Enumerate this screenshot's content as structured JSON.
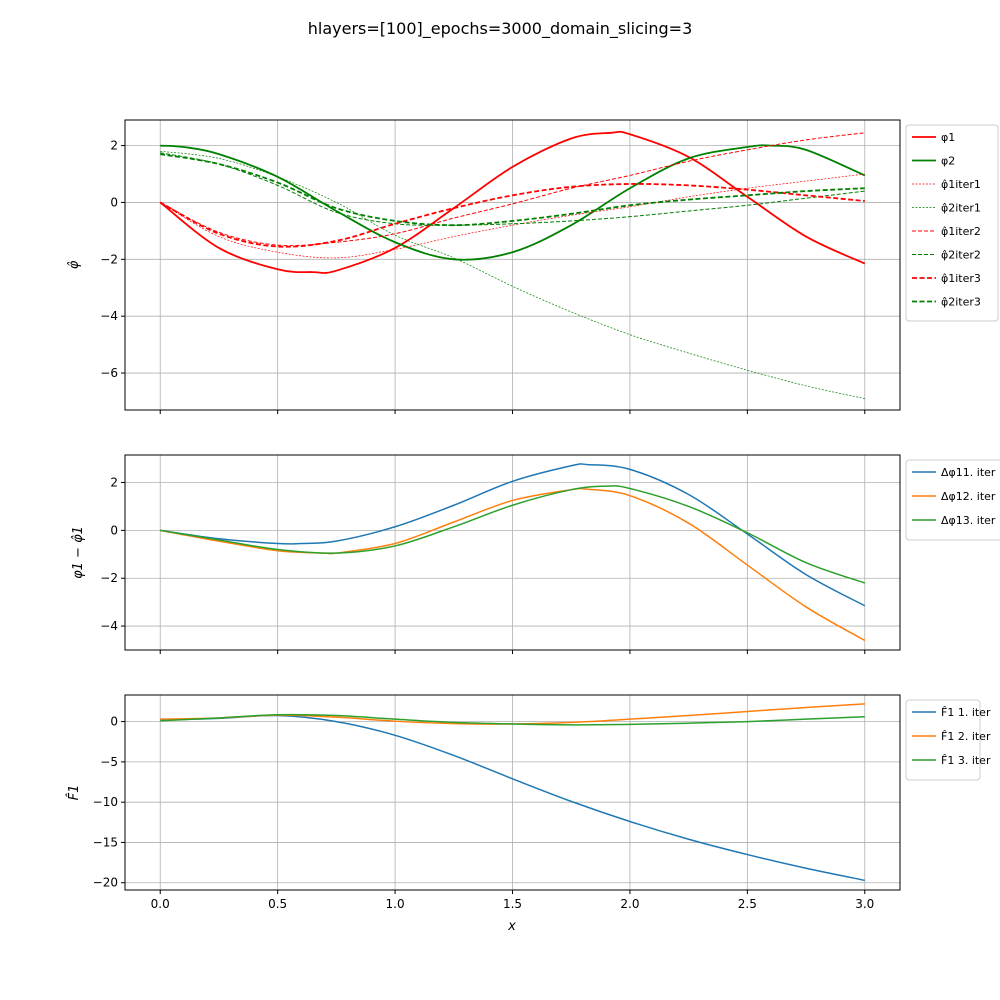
{
  "title": "hlayers=[100]_epochs=3000_domain_slicing=3",
  "xlabel": "x",
  "x_ticks": [
    "0.0",
    "0.5",
    "1.0",
    "1.5",
    "2.0",
    "2.5",
    "3.0"
  ],
  "chart_data": [
    {
      "type": "line",
      "ylabel": "φ̂",
      "xlim": [
        -0.15,
        3.15
      ],
      "ylim": [
        -7.3,
        2.9
      ],
      "y_ticks": [
        2,
        0,
        -2,
        -4,
        -6
      ],
      "y_tick_labels": [
        "2",
        "0",
        "−2",
        "−4",
        "−6"
      ],
      "grid": true,
      "legend_position": "outside-right",
      "series": [
        {
          "name": "φ1",
          "color": "#ff0000",
          "dash": "solid",
          "width": 1.8,
          "x": [
            0,
            0.25,
            0.5,
            0.65,
            0.75,
            1.0,
            1.25,
            1.5,
            1.75,
            1.92,
            2.0,
            2.25,
            2.5,
            2.75,
            3.0
          ],
          "y": [
            0,
            -1.6,
            -2.35,
            -2.45,
            -2.4,
            -1.6,
            -0.2,
            1.25,
            2.25,
            2.45,
            2.4,
            1.6,
            0.2,
            -1.2,
            -2.15
          ]
        },
        {
          "name": "φ2",
          "color": "#008000",
          "dash": "solid",
          "width": 1.8,
          "x": [
            0,
            0.1,
            0.25,
            0.5,
            0.75,
            1.0,
            1.25,
            1.5,
            1.75,
            2.0,
            2.25,
            2.5,
            2.6,
            2.75,
            3.0
          ],
          "y": [
            2.0,
            1.95,
            1.7,
            0.9,
            -0.3,
            -1.4,
            -2.0,
            -1.75,
            -0.8,
            0.5,
            1.55,
            1.95,
            2.0,
            1.85,
            0.95
          ]
        },
        {
          "name": "φ̂1iter1",
          "color": "#ff0000",
          "dash": "2,1.5",
          "width": 0.7,
          "x": [
            0,
            0.25,
            0.5,
            0.75,
            1.0,
            1.25,
            1.5,
            1.75,
            2.0,
            2.25,
            2.5,
            2.75,
            3.0
          ],
          "y": [
            0,
            -1.2,
            -1.75,
            -1.95,
            -1.65,
            -1.2,
            -0.8,
            -0.45,
            -0.15,
            0.2,
            0.5,
            0.75,
            1.0
          ]
        },
        {
          "name": "φ̂2iter1",
          "color": "#008000",
          "dash": "2,1.5",
          "width": 0.7,
          "x": [
            0,
            0.25,
            0.5,
            0.75,
            1.0,
            1.25,
            1.5,
            1.75,
            2.0,
            2.25,
            2.5,
            2.75,
            3.0
          ],
          "y": [
            1.8,
            1.55,
            0.9,
            0.0,
            -1.15,
            -1.95,
            -2.95,
            -3.85,
            -4.65,
            -5.3,
            -5.9,
            -6.45,
            -6.9
          ]
        },
        {
          "name": "φ̂1iter2",
          "color": "#ff0000",
          "dash": "4,2",
          "width": 1.0,
          "x": [
            0,
            0.25,
            0.5,
            0.75,
            1.0,
            1.25,
            1.5,
            1.75,
            2.0,
            2.25,
            2.5,
            2.75,
            3.0
          ],
          "y": [
            0,
            -1.05,
            -1.5,
            -1.4,
            -1.1,
            -0.55,
            -0.05,
            0.5,
            0.95,
            1.45,
            1.85,
            2.2,
            2.45
          ]
        },
        {
          "name": "φ̂2iter2",
          "color": "#008000",
          "dash": "4,2",
          "width": 1.0,
          "x": [
            0,
            0.25,
            0.5,
            0.75,
            1.0,
            1.25,
            1.5,
            1.75,
            2.0,
            2.25,
            2.5,
            2.75,
            3.0
          ],
          "y": [
            1.75,
            1.35,
            0.6,
            -0.35,
            -0.75,
            -0.8,
            -0.75,
            -0.65,
            -0.5,
            -0.3,
            -0.1,
            0.15,
            0.4
          ]
        },
        {
          "name": "φ̂1iter3",
          "color": "#ff0000",
          "dash": "5,2.5",
          "width": 1.8,
          "x": [
            0,
            0.25,
            0.5,
            0.75,
            1.0,
            1.25,
            1.5,
            1.75,
            2.0,
            2.25,
            2.5,
            2.75,
            3.0
          ],
          "y": [
            0,
            -1.1,
            -1.55,
            -1.35,
            -0.75,
            -0.2,
            0.25,
            0.55,
            0.65,
            0.6,
            0.45,
            0.25,
            0.05
          ]
        },
        {
          "name": "φ̂2iter3",
          "color": "#008000",
          "dash": "5,2.5",
          "width": 1.8,
          "x": [
            0,
            0.25,
            0.5,
            0.75,
            1.0,
            1.25,
            1.5,
            1.75,
            2.0,
            2.25,
            2.5,
            2.75,
            3.0
          ],
          "y": [
            1.7,
            1.35,
            0.7,
            -0.2,
            -0.65,
            -0.8,
            -0.65,
            -0.4,
            -0.1,
            0.1,
            0.25,
            0.4,
            0.5
          ]
        }
      ]
    },
    {
      "type": "line",
      "ylabel": "φ1 − φ̂1",
      "xlim": [
        -0.15,
        3.15
      ],
      "ylim": [
        -5.0,
        3.15
      ],
      "y_ticks": [
        2,
        0,
        -2,
        -4
      ],
      "y_tick_labels": [
        "2",
        "0",
        "−2",
        "−4"
      ],
      "grid": true,
      "legend_position": "outside-right",
      "series": [
        {
          "name": "Δφ11. iter",
          "color": "#1f77b4",
          "dash": "solid",
          "width": 1.5,
          "x": [
            0,
            0.25,
            0.5,
            0.6,
            0.75,
            1.0,
            1.25,
            1.5,
            1.75,
            1.82,
            2.0,
            2.25,
            2.5,
            2.75,
            3.0
          ],
          "y": [
            0,
            -0.35,
            -0.55,
            -0.55,
            -0.45,
            0.15,
            1.05,
            2.05,
            2.7,
            2.75,
            2.55,
            1.5,
            -0.15,
            -1.85,
            -3.15
          ]
        },
        {
          "name": "Δφ12. iter",
          "color": "#ff7f0e",
          "dash": "solid",
          "width": 1.5,
          "x": [
            0,
            0.25,
            0.5,
            0.7,
            0.75,
            1.0,
            1.25,
            1.5,
            1.75,
            1.82,
            2.0,
            2.25,
            2.5,
            2.75,
            3.0
          ],
          "y": [
            0,
            -0.45,
            -0.85,
            -0.95,
            -0.95,
            -0.55,
            0.35,
            1.25,
            1.7,
            1.72,
            1.45,
            0.3,
            -1.45,
            -3.2,
            -4.6
          ]
        },
        {
          "name": "Δφ13. iter",
          "color": "#2ca02c",
          "dash": "solid",
          "width": 1.5,
          "x": [
            0,
            0.25,
            0.5,
            0.75,
            1.0,
            1.25,
            1.5,
            1.75,
            1.9,
            2.0,
            2.25,
            2.5,
            2.75,
            3.0
          ],
          "y": [
            0,
            -0.4,
            -0.8,
            -0.95,
            -0.65,
            0.15,
            1.05,
            1.7,
            1.85,
            1.75,
            1.0,
            -0.1,
            -1.35,
            -2.2
          ]
        }
      ]
    },
    {
      "type": "line",
      "ylabel": "F̂1",
      "xlim": [
        -0.15,
        3.15
      ],
      "ylim": [
        -20.9,
        3.3
      ],
      "y_ticks": [
        0,
        -5,
        -10,
        -15,
        -20
      ],
      "y_tick_labels": [
        "0",
        "−5",
        "−10",
        "−15",
        "−20"
      ],
      "grid": true,
      "legend_position": "outside-right",
      "series": [
        {
          "name": "F̂1 1. iter",
          "color": "#1f77b4",
          "dash": "solid",
          "width": 1.5,
          "x": [
            0,
            0.25,
            0.5,
            0.75,
            1.0,
            1.25,
            1.5,
            1.75,
            2.0,
            2.25,
            2.5,
            2.75,
            3.0
          ],
          "y": [
            0.2,
            0.4,
            0.75,
            0.0,
            -1.7,
            -4.2,
            -7.1,
            -9.9,
            -12.4,
            -14.6,
            -16.5,
            -18.2,
            -19.7
          ]
        },
        {
          "name": "F̂1 2. iter",
          "color": "#ff7f0e",
          "dash": "solid",
          "width": 1.5,
          "x": [
            0,
            0.25,
            0.5,
            0.75,
            1.0,
            1.25,
            1.5,
            1.75,
            2.0,
            2.25,
            2.5,
            2.75,
            3.0
          ],
          "y": [
            0.3,
            0.45,
            0.8,
            0.55,
            0.05,
            -0.25,
            -0.3,
            -0.1,
            0.3,
            0.75,
            1.25,
            1.75,
            2.2
          ]
        },
        {
          "name": "F̂1 3. iter",
          "color": "#2ca02c",
          "dash": "solid",
          "width": 1.5,
          "x": [
            0,
            0.25,
            0.5,
            0.75,
            1.0,
            1.25,
            1.5,
            1.75,
            2.0,
            2.25,
            2.5,
            2.75,
            3.0
          ],
          "y": [
            0.1,
            0.45,
            0.85,
            0.75,
            0.3,
            -0.1,
            -0.3,
            -0.4,
            -0.35,
            -0.2,
            0.0,
            0.3,
            0.6
          ]
        }
      ]
    }
  ]
}
